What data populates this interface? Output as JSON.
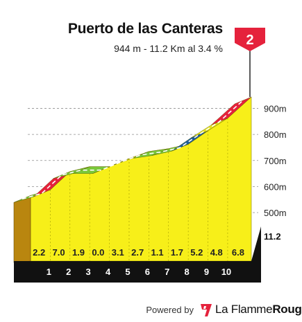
{
  "header": {
    "title": "Puerto de las Canteras",
    "subtitle": "944 m - 11.2 Km al 3.4 %"
  },
  "footer": {
    "powered_by": "Powered by",
    "brand_prefix": "La Flamme",
    "brand_suffix": "Rouge"
  },
  "category_flag": "2",
  "chart_data": {
    "type": "area",
    "title": "Puerto de las Canteras",
    "subtitle": "944 m - 11.2 Km al 3.4 %",
    "x_unit": "km",
    "y_unit": "m",
    "km_markers": [
      "1",
      "2",
      "3",
      "4",
      "5",
      "6",
      "7",
      "8",
      "9",
      "10"
    ],
    "end_label": "11.2",
    "y_ticks": [
      "500m",
      "600m",
      "700m",
      "800m",
      "900m"
    ],
    "y_tick_values": [
      500,
      600,
      700,
      800,
      900
    ],
    "ylim": [
      480,
      940
    ],
    "xlim": [
      0,
      11.2
    ],
    "segments": [
      {
        "start_km": 0,
        "end_km": 1,
        "gradient": 2.2
      },
      {
        "start_km": 1,
        "end_km": 2,
        "gradient": 7.0
      },
      {
        "start_km": 2,
        "end_km": 3,
        "gradient": 1.9
      },
      {
        "start_km": 3,
        "end_km": 4,
        "gradient": 0.0
      },
      {
        "start_km": 4,
        "end_km": 5,
        "gradient": 3.1
      },
      {
        "start_km": 5,
        "end_km": 6,
        "gradient": 2.7
      },
      {
        "start_km": 6,
        "end_km": 7,
        "gradient": 1.1
      },
      {
        "start_km": 7,
        "end_km": 8,
        "gradient": 1.7
      },
      {
        "start_km": 8,
        "end_km": 9,
        "gradient": 5.2
      },
      {
        "start_km": 9,
        "end_km": 10,
        "gradient": 4.8
      },
      {
        "start_km": 10,
        "end_km": 11.2,
        "gradient": 6.8
      }
    ],
    "gradient_labels": [
      "2.2",
      "7.0",
      "1.9",
      "0.0",
      "3.1",
      "2.7",
      "1.1",
      "1.7",
      "5.2",
      "4.8",
      "6.8"
    ],
    "colors": {
      "profile_fill": "#f7ef19",
      "gradient_easy": "#79c83a",
      "gradient_medium": "#e3e11b",
      "gradient_hard": "#1e5d96",
      "gradient_steep": "#e5223c",
      "base": "#111111",
      "side_wall": "#b9860f",
      "flag": "#e5223c"
    },
    "grid": "dashed"
  }
}
